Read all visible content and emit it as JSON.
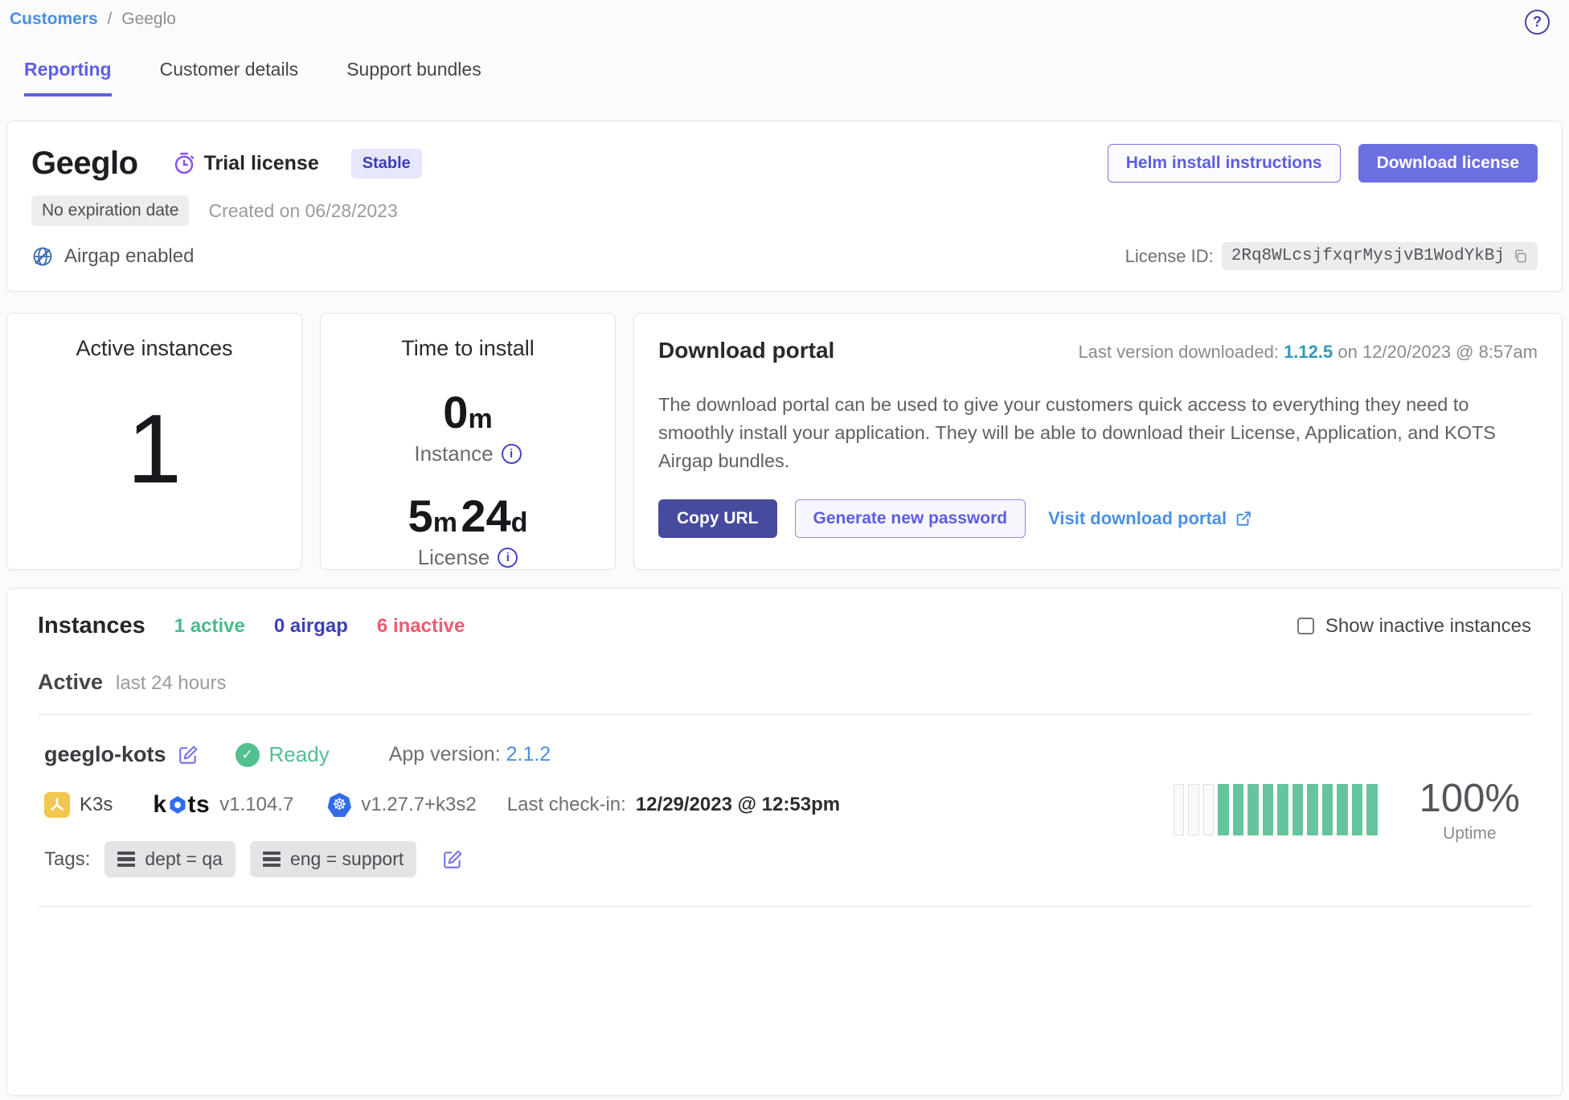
{
  "breadcrumb": {
    "root": "Customers",
    "separator": "/",
    "current": "Geeglo"
  },
  "tabs": {
    "reporting": "Reporting",
    "customer_details": "Customer details",
    "support_bundles": "Support bundles"
  },
  "license_card": {
    "app_name": "Geeglo",
    "license_type": "Trial license",
    "channel_badge": "Stable",
    "expiration_badge": "No expiration date",
    "created": "Created on 06/28/2023",
    "airgap": "Airgap enabled",
    "license_id_label": "License ID:",
    "license_id": "2Rq8WLcsjfxqrMysjvB1WodYkBj",
    "helm_button": "Helm install instructions",
    "download_button": "Download license"
  },
  "stats": {
    "active_instances": {
      "title": "Active instances",
      "value": "1"
    },
    "time_to_install": {
      "title": "Time to install",
      "instance_value": "0",
      "instance_unit": "m",
      "instance_label": "Instance",
      "license_value1": "5",
      "license_unit1": "m",
      "license_value2": "24",
      "license_unit2": "d",
      "license_label": "License"
    }
  },
  "download_portal": {
    "title": "Download portal",
    "last_version_label": "Last version downloaded:",
    "last_version": "1.12.5",
    "last_version_suffix": "on 12/20/2023 @ 8:57am",
    "description": "The download portal can be used to give your customers quick access to everything they need to smoothly install your application. They will be able to download their License, Application, and KOTS Airgap bundles.",
    "copy_url_button": "Copy URL",
    "generate_password_button": "Generate new password",
    "visit_portal_link": "Visit download portal"
  },
  "instances": {
    "title": "Instances",
    "count_active": "1 active",
    "count_airgap": "0 airgap",
    "count_inactive": "6 inactive",
    "show_inactive_label": "Show inactive instances",
    "section_label": "Active",
    "section_sublabel": "last 24 hours",
    "row": {
      "name": "geeglo-kots",
      "status": "Ready",
      "app_version_label": "App version:",
      "app_version": "2.1.2",
      "distribution": "K3s",
      "kots_word_k": "k",
      "kots_word_ts": "ts",
      "kots_version": "v1.104.7",
      "k8s_version": "v1.27.7+k3s2",
      "last_checkin_label": "Last check-in:",
      "last_checkin": "12/29/2023 @ 12:53pm",
      "tags_label": "Tags:",
      "tags": [
        "dept = qa",
        "eng = support"
      ],
      "uptime_value": "100%",
      "uptime_label": "Uptime",
      "uptime_bars": {
        "empty": 3,
        "filled": 11
      }
    }
  },
  "icons": {
    "question": "?",
    "check": "✓",
    "info": "i",
    "k8s_wheel": "☸"
  },
  "colors": {
    "accent_indigo": "#5d5fe6",
    "button_primary": "#6c6fe0",
    "button_dark": "#474b9e",
    "link_blue": "#4a90e2",
    "version_teal": "#3097ba",
    "status_green": "#52c08f",
    "airgap_blue": "#3d3dbe",
    "inactive_pink": "#ef5a71",
    "uptime_green": "#66c49c",
    "k3s_yellow": "#f2c74f",
    "k8s_blue": "#326ce5",
    "trial_purple": "#8b52f4"
  }
}
